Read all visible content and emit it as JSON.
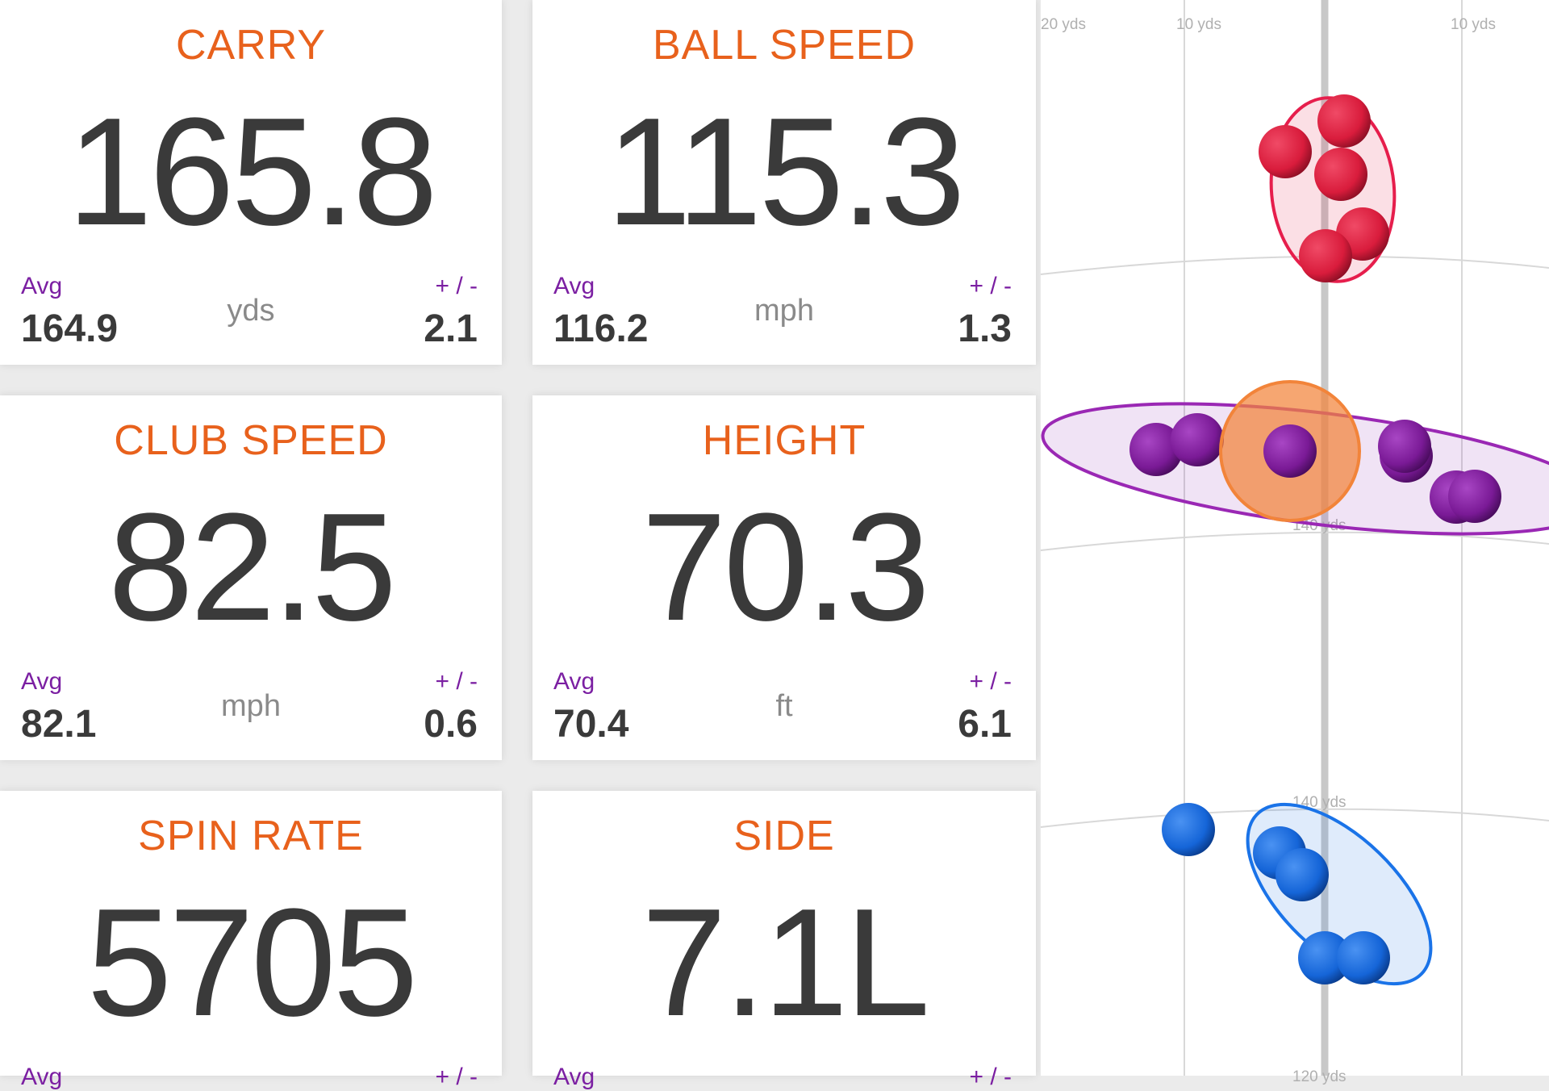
{
  "cards": [
    {
      "title": "CARRY",
      "value": "165.8",
      "avg_label": "Avg",
      "avg": "164.9",
      "unit": "yds",
      "pm_label": "+ / -",
      "deviation": "2.1"
    },
    {
      "title": "BALL SPEED",
      "value": "115.3",
      "avg_label": "Avg",
      "avg": "116.2",
      "unit": "mph",
      "pm_label": "+ / -",
      "deviation": "1.3"
    },
    {
      "title": "CLUB SPEED",
      "value": "82.5",
      "avg_label": "Avg",
      "avg": "82.1",
      "unit": "mph",
      "pm_label": "+ / -",
      "deviation": "0.6"
    },
    {
      "title": "HEIGHT",
      "value": "70.3",
      "avg_label": "Avg",
      "avg": "70.4",
      "unit": "ft",
      "pm_label": "+ / -",
      "deviation": "6.1"
    },
    {
      "title": "SPIN RATE",
      "value": "5705",
      "avg_label": "Avg",
      "avg": "",
      "unit": "",
      "pm_label": "+ / -",
      "deviation": ""
    },
    {
      "title": "SIDE",
      "value": "7.1L",
      "avg_label": "Avg",
      "avg": "",
      "unit": "",
      "pm_label": "+ / -",
      "deviation": ""
    }
  ],
  "dispersion": {
    "top_labels": [
      "20 yds",
      "10 yds",
      "10 yds"
    ],
    "range_labels": [
      "140 yds",
      "140 yds",
      "120 yds"
    ],
    "colors": {
      "red": "#d91c3c",
      "purple": "#7a1a96",
      "blue": "#1565d8",
      "highlight": "#f2843a",
      "gridline": "#d8d8d8",
      "center_line": "#c8c8c8"
    }
  }
}
